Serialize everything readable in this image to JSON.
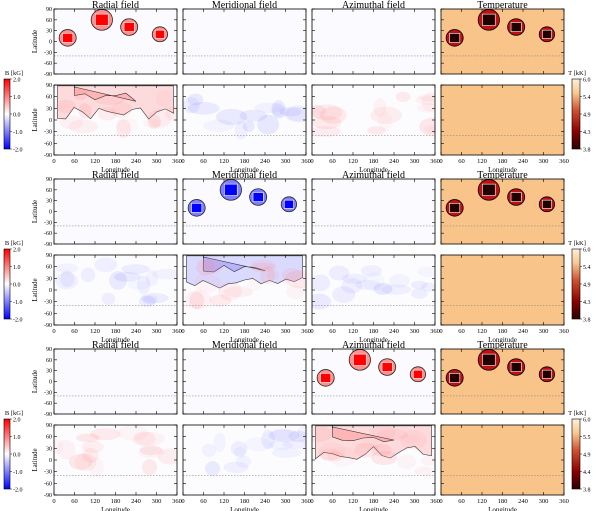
{
  "chart_data": {
    "type": "heatmap",
    "description_free": true,
    "column_titles": [
      "Radial field",
      "Meridional field",
      "Azimuthal field",
      "Temperature"
    ],
    "xlabel": "Longitude",
    "ylabel": "Latitude",
    "x_ticks": [
      "0",
      "60",
      "120",
      "180",
      "240",
      "300",
      "360"
    ],
    "y_ticks": [
      "90",
      "60",
      "30",
      "0",
      "-30",
      "-60",
      "-90"
    ],
    "y_ticks_lower": [
      "90",
      "60",
      "30",
      "0",
      "-30",
      "-60",
      "-90"
    ],
    "xlim": [
      0,
      360
    ],
    "ylim": [
      -90,
      90
    ],
    "b_colorbar": {
      "label": "B [kG]",
      "ticks": [
        "2.0",
        "1.0",
        "0.0",
        "-1.0",
        "-2.0"
      ],
      "range": [
        -2.0,
        2.0
      ]
    },
    "t_colorbars": [
      {
        "label": "T [kK]",
        "ticks": [
          "6.0",
          "5.4",
          "4.9",
          "4.3",
          "3.8"
        ],
        "range": [
          3.8,
          6.0
        ]
      },
      {
        "label": "T [kK]",
        "ticks": [
          "6.0",
          "5.4",
          "4.9",
          "4.3",
          "3.8"
        ],
        "range": [
          3.8,
          6.0
        ]
      },
      {
        "label": "T [kK]",
        "ticks": [
          "6.0",
          "5.5",
          "4.9",
          "4.4",
          "3.8"
        ],
        "range": [
          3.8,
          6.0
        ]
      }
    ],
    "spots": [
      {
        "lon": 40,
        "lat": 10,
        "radius_deg": 20
      },
      {
        "lon": 140,
        "lat": 60,
        "radius_deg": 25
      },
      {
        "lon": 220,
        "lat": 40,
        "radius_deg": 20
      },
      {
        "lon": 310,
        "lat": 20,
        "radius_deg": 18
      }
    ],
    "groups": [
      {
        "field_component": "Radial field",
        "spot_field_kG": 1.5,
        "sign": "positive"
      },
      {
        "field_component": "Meridional field",
        "spot_field_kG": -1.5,
        "sign": "negative"
      },
      {
        "field_component": "Azimuthal field",
        "spot_field_kG": 1.5,
        "sign": "positive"
      }
    ],
    "photosphere_T_kK": 5.8,
    "spot_T_kK": 3.8
  }
}
